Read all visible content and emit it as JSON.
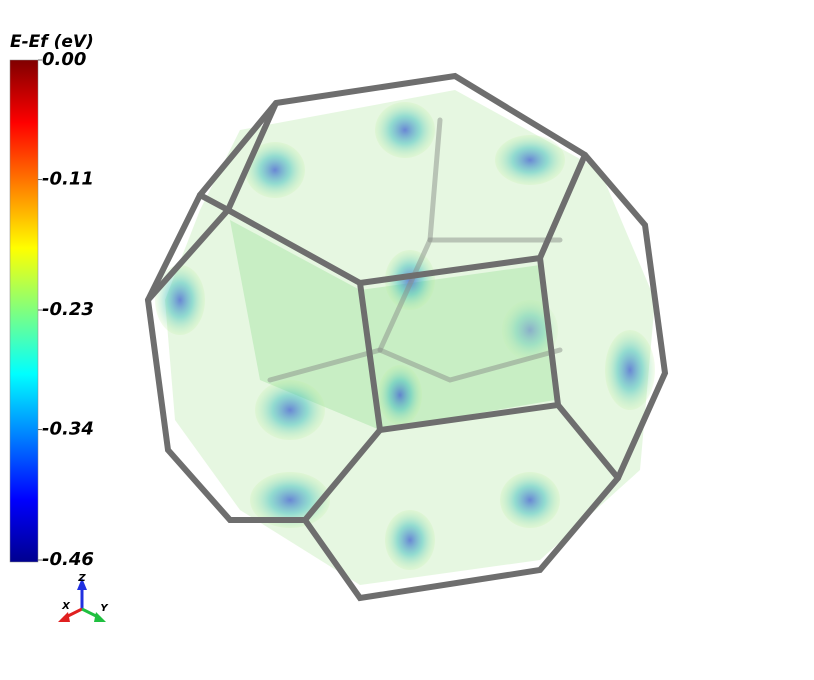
{
  "colorbar": {
    "title": "E-Ef (eV)",
    "lim": [
      -0.46,
      0
    ],
    "ticks": [
      {
        "value": 0,
        "label": "0.00"
      },
      -0.11,
      -0.23,
      -0.34,
      -0.46
    ]
  },
  "axes_triad": {
    "x": "X",
    "y": "Y",
    "z": "Z"
  }
}
